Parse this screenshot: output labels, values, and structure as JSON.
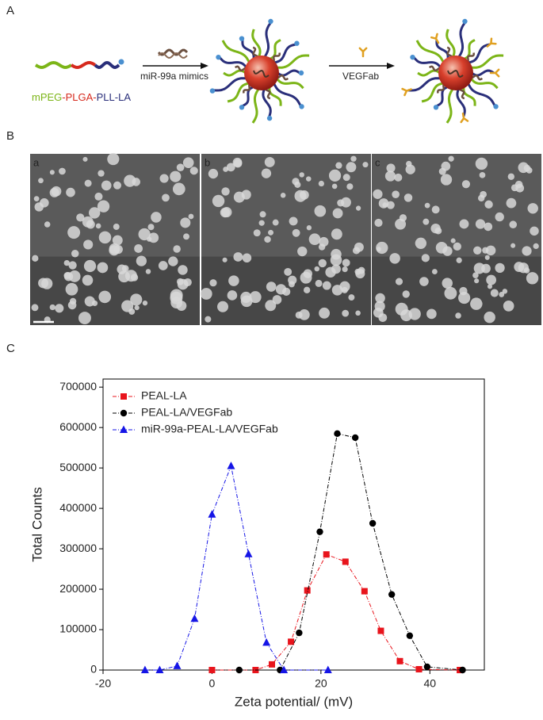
{
  "panels": {
    "a": {
      "label": "A",
      "polymer": [
        {
          "text": "mPEG",
          "color": "#7cb518"
        },
        {
          "text": "-PLGA-",
          "color": "#d62a1e"
        },
        {
          "text": "PLL-LA",
          "color": "#2a2f7a"
        }
      ],
      "step1": "miR-99a mimics",
      "step2": "VEGFab"
    },
    "b": {
      "label": "B",
      "images": [
        "a",
        "b",
        "c"
      ]
    },
    "c": {
      "label": "C"
    }
  },
  "chart_data": {
    "type": "line",
    "x_label": "Zeta potential/ (mV)",
    "y_label": "Total Counts",
    "xlim": [
      -20,
      50
    ],
    "ylim": [
      0,
      720000
    ],
    "xticks": [
      -20,
      0,
      20,
      40
    ],
    "yticks": [
      0,
      100000,
      200000,
      300000,
      400000,
      500000,
      600000,
      700000
    ],
    "legend": "upper left",
    "series": [
      {
        "name": "PEAL-LA",
        "color": "#e8141c",
        "marker": "square",
        "x": [
          0,
          8,
          11,
          14.5,
          17.5,
          21,
          24.5,
          28,
          31,
          34.5,
          38,
          45.5
        ],
        "values": [
          0,
          0,
          14000,
          70000,
          197000,
          286000,
          268000,
          195000,
          97000,
          22000,
          2000,
          0
        ]
      },
      {
        "name": "PEAL-LA/VEGFab",
        "color": "#000000",
        "marker": "circle",
        "x": [
          5,
          12.5,
          16,
          19.8,
          23,
          26.3,
          29.5,
          33,
          36.3,
          39.5,
          46
        ],
        "values": [
          0,
          0,
          92000,
          342000,
          585000,
          575000,
          363000,
          187000,
          85000,
          8000,
          0
        ]
      },
      {
        "name": "miR-99a-PEAL-LA/VEGFab",
        "color": "#1515e6",
        "marker": "triangle",
        "x": [
          -12.3,
          -9.6,
          -6.4,
          -3.2,
          0,
          3.5,
          6.7,
          10,
          13.2,
          21.3
        ],
        "values": [
          0,
          0,
          10000,
          127000,
          385000,
          505000,
          287000,
          68000,
          0,
          0
        ]
      }
    ]
  }
}
